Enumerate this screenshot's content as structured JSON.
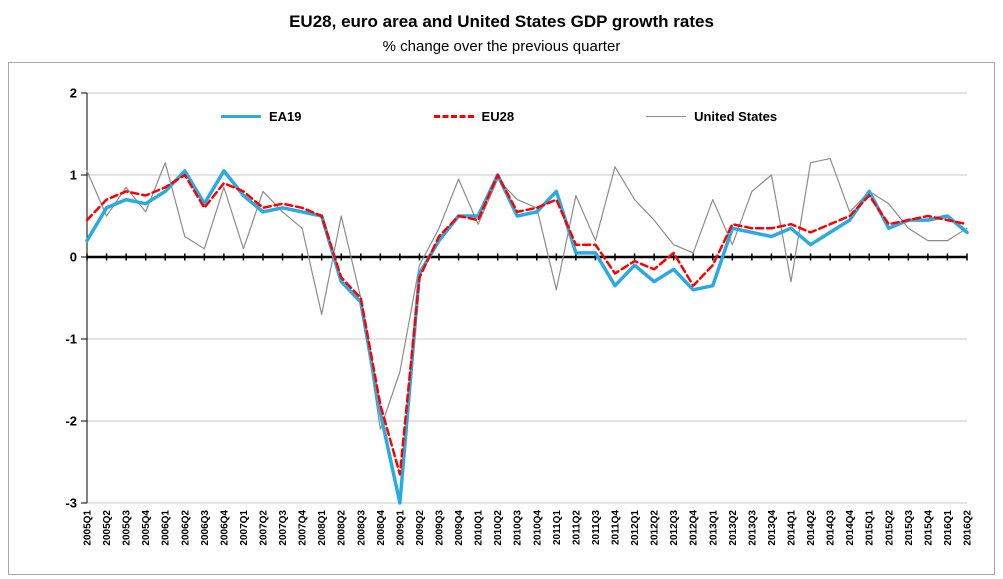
{
  "header": {
    "title": "EU28, euro area and United States GDP growth rates",
    "subtitle": "% change over the previous quarter"
  },
  "chart_data": {
    "type": "line",
    "title": "EU28, euro area and United States GDP growth rates",
    "subtitle": "% change over the previous quarter",
    "xlabel": "",
    "ylabel": "",
    "ylim": [
      -3,
      2
    ],
    "yticks": [
      2,
      1,
      0,
      -1,
      -2,
      -3
    ],
    "grid": "horizontal",
    "legend_position": "top-inside",
    "categories": [
      "2005Q1",
      "2005Q2",
      "2005Q3",
      "2005Q4",
      "2006Q1",
      "2006Q2",
      "2006Q3",
      "2006Q4",
      "2007Q1",
      "2007Q2",
      "2007Q3",
      "2007Q4",
      "2008Q1",
      "2008Q2",
      "2008Q3",
      "2008Q4",
      "2009Q1",
      "2009Q2",
      "2009Q3",
      "2009Q4",
      "2010Q1",
      "2010Q2",
      "2010Q3",
      "2010Q4",
      "2011Q1",
      "2011Q2",
      "2011Q3",
      "2011Q4",
      "2012Q1",
      "2012Q2",
      "2012Q3",
      "2012Q4",
      "2013Q1",
      "2013Q2",
      "2013Q3",
      "2013Q4",
      "2014Q1",
      "2014Q2",
      "2014Q3",
      "2014Q4",
      "2015Q1",
      "2015Q2",
      "2015Q3",
      "2015Q4",
      "2016Q1",
      "2016Q2"
    ],
    "series": [
      {
        "name": "EA19",
        "color": "#29ABE2",
        "width": 3.5,
        "dash": null,
        "values": [
          0.2,
          0.6,
          0.7,
          0.65,
          0.8,
          1.05,
          0.65,
          1.05,
          0.75,
          0.55,
          0.6,
          0.55,
          0.5,
          -0.3,
          -0.55,
          -1.9,
          -3.0,
          -0.2,
          0.2,
          0.5,
          0.5,
          1.0,
          0.5,
          0.55,
          0.8,
          0.05,
          0.05,
          -0.35,
          -0.1,
          -0.3,
          -0.15,
          -0.4,
          -0.35,
          0.35,
          0.3,
          0.25,
          0.35,
          0.15,
          0.3,
          0.45,
          0.8,
          0.35,
          0.45,
          0.45,
          0.5,
          0.3
        ]
      },
      {
        "name": "EU28",
        "color": "#FF0000",
        "width": 2.5,
        "dash": "7 4",
        "values": [
          0.45,
          0.7,
          0.8,
          0.75,
          0.85,
          1.0,
          0.6,
          0.9,
          0.8,
          0.6,
          0.65,
          0.6,
          0.5,
          -0.25,
          -0.5,
          -1.8,
          -2.65,
          -0.25,
          0.25,
          0.5,
          0.45,
          1.0,
          0.55,
          0.6,
          0.7,
          0.15,
          0.15,
          -0.2,
          -0.05,
          -0.15,
          0.05,
          -0.35,
          -0.1,
          0.4,
          0.35,
          0.35,
          0.4,
          0.3,
          0.4,
          0.5,
          0.75,
          0.4,
          0.45,
          0.5,
          0.45,
          0.4
        ]
      },
      {
        "name": "United States",
        "color": "#8C8C8C",
        "width": 1.2,
        "dash": null,
        "values": [
          1.05,
          0.5,
          0.85,
          0.55,
          1.15,
          0.25,
          0.1,
          0.85,
          0.1,
          0.8,
          0.55,
          0.35,
          -0.7,
          0.5,
          -0.5,
          -2.1,
          -1.4,
          -0.1,
          0.35,
          0.95,
          0.4,
          0.95,
          0.7,
          0.6,
          -0.4,
          0.75,
          0.2,
          1.1,
          0.7,
          0.45,
          0.15,
          0.05,
          0.7,
          0.15,
          0.8,
          1.0,
          -0.3,
          1.15,
          1.2,
          0.55,
          0.8,
          0.65,
          0.35,
          0.2,
          0.2,
          0.35
        ]
      }
    ]
  }
}
